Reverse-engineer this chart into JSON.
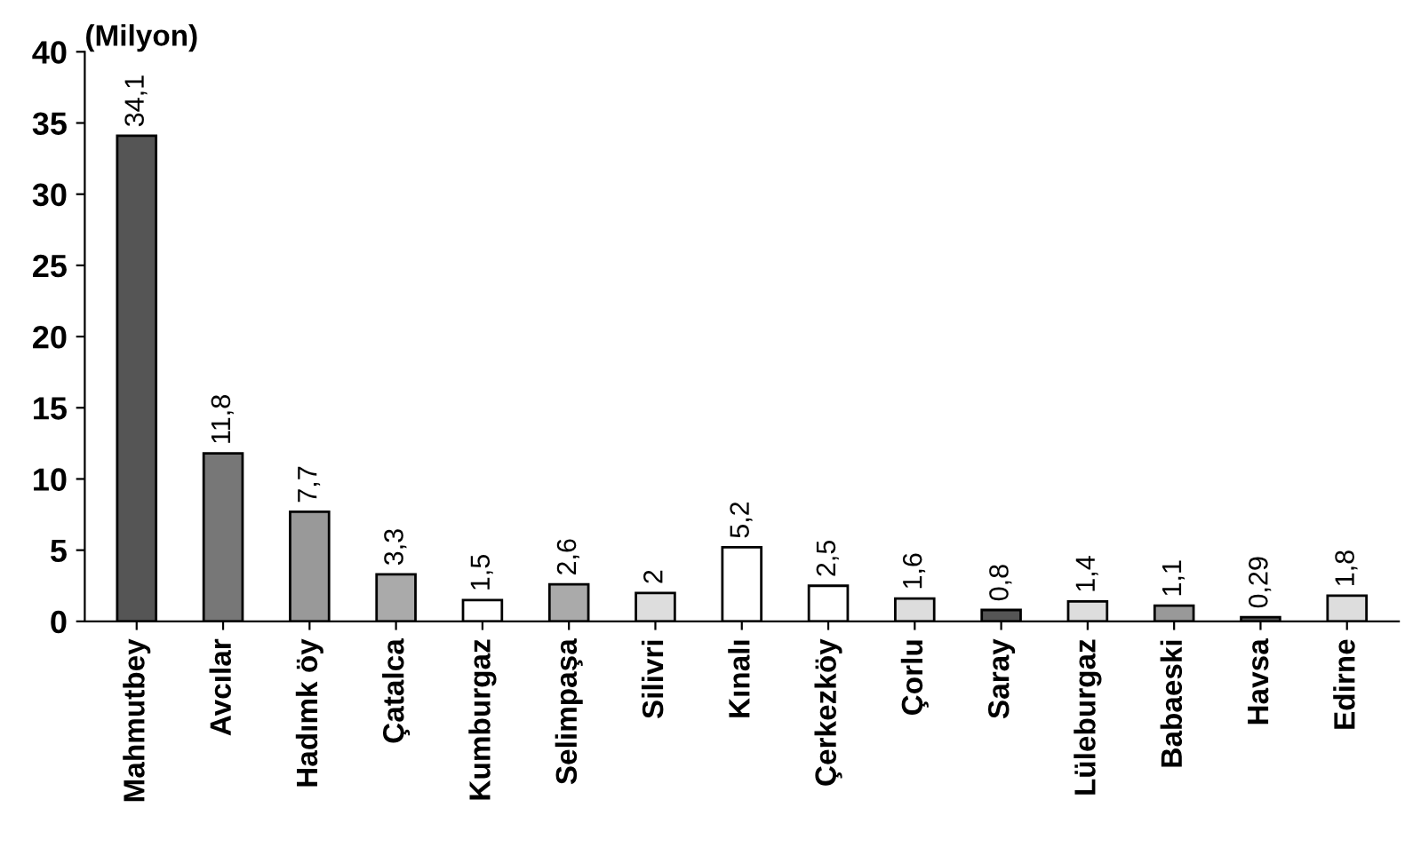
{
  "chart_data": {
    "type": "bar",
    "ylabel": "(Milyon)",
    "categories": [
      "Mahmutbey",
      "Avcılar",
      "Hadımk öy",
      "Çatalca",
      "Kumburgaz",
      "Selimpaşa",
      "Silivri",
      "Kınalı",
      "Çerkezköy",
      "Çorlu",
      "Saray",
      "Lüleburgaz",
      "Babaeski",
      "Havsa",
      "Edirne"
    ],
    "values": [
      34.1,
      11.8,
      7.7,
      3.3,
      1.5,
      2.6,
      2,
      5.2,
      2.5,
      1.6,
      0.8,
      1.4,
      1.1,
      0.29,
      1.8
    ],
    "value_labels": [
      "34,1",
      "11,8",
      "7,7",
      "3,3",
      "1,5",
      "2,6",
      "2",
      "5,2",
      "2,5",
      "1,6",
      "0,8",
      "1,4",
      "1,1",
      "0,29",
      "1,8"
    ],
    "colors": [
      "#555555",
      "#777777",
      "#999999",
      "#aaaaaa",
      "#ffffff",
      "#aaaaaa",
      "#dddddd",
      "#ffffff",
      "#ffffff",
      "#dddddd",
      "#555555",
      "#dddddd",
      "#999999",
      "#555555",
      "#dddddd"
    ],
    "ylim": [
      0,
      40
    ],
    "yticks": [
      0,
      5,
      10,
      15,
      20,
      25,
      30,
      35,
      40
    ],
    "grid": false,
    "legend": false
  }
}
